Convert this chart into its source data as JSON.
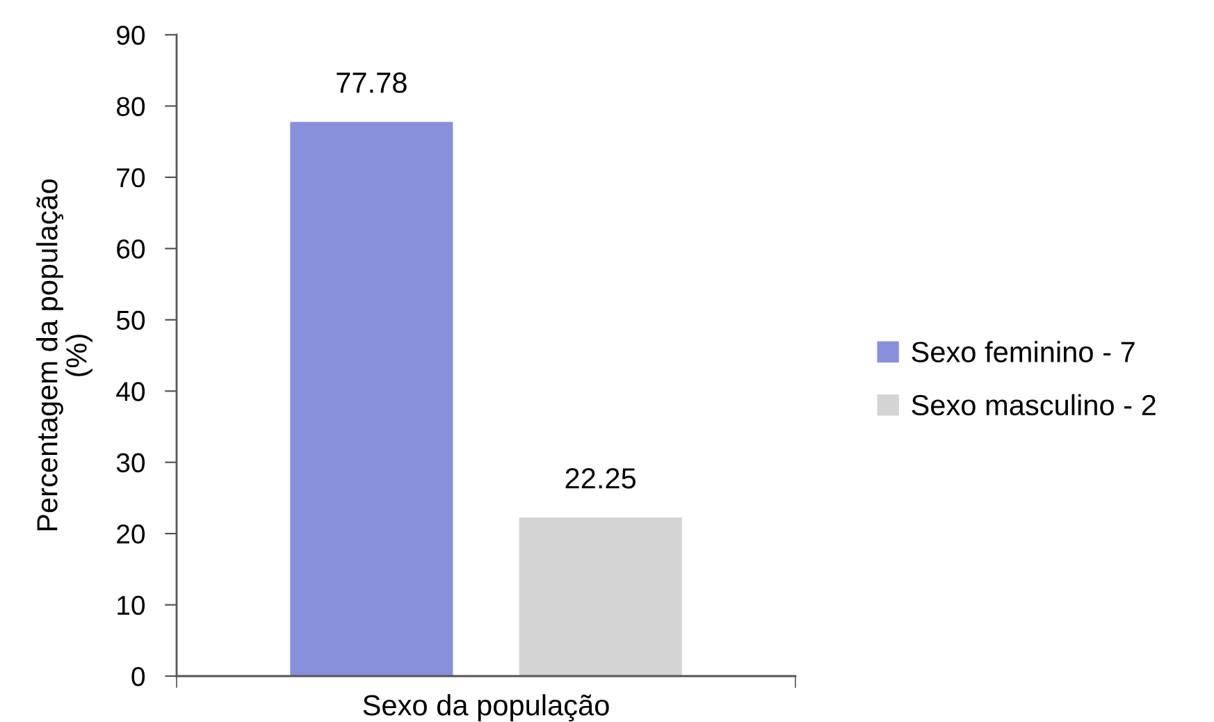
{
  "chart_data": {
    "type": "bar",
    "xlabel": "Sexo da população",
    "ylabel": "Percentagem da população\n(%)",
    "categories": [
      null
    ],
    "series": [
      {
        "name": "Sexo feminino - 7",
        "color": "#8890dc",
        "values": [
          77.78
        ]
      },
      {
        "name": "Sexo masculino - 2",
        "color": "#d4d4d4",
        "values": [
          22.25
        ]
      }
    ],
    "ylim": [
      0,
      90
    ],
    "yticks": [
      0,
      10,
      20,
      30,
      40,
      50,
      60,
      70,
      80,
      90
    ],
    "data_labels": true,
    "legend": "right",
    "grid": false
  }
}
